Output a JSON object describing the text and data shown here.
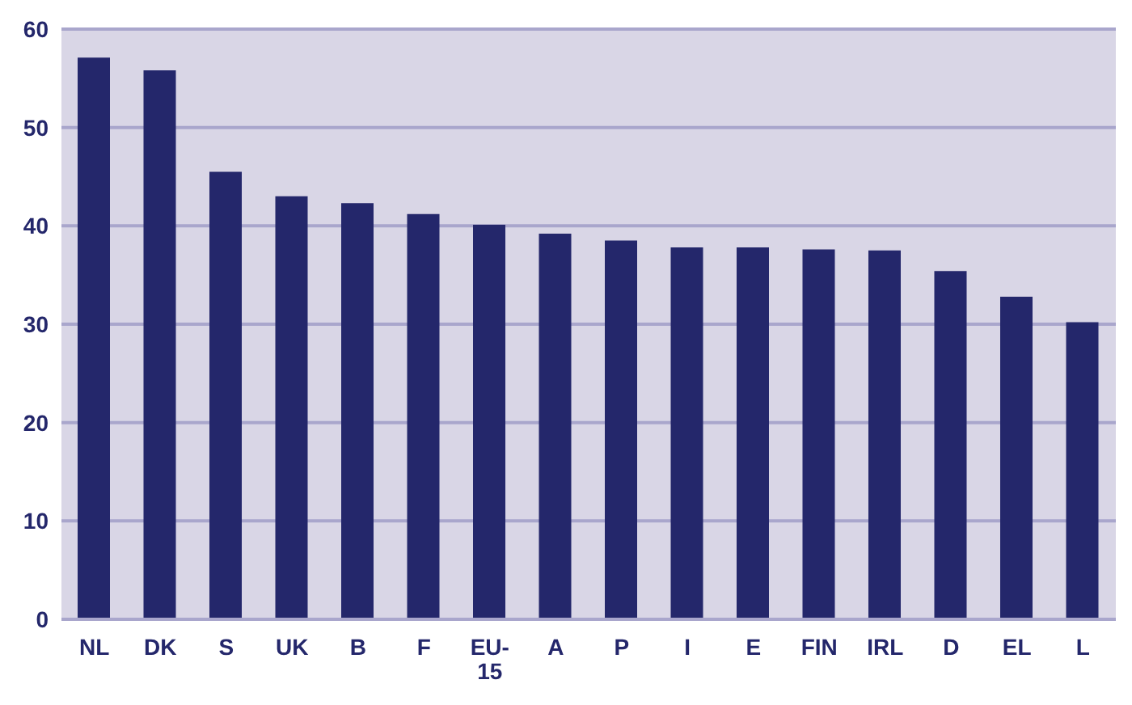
{
  "chart_data": {
    "type": "bar",
    "categories": [
      "NL",
      "DK",
      "S",
      "UK",
      "B",
      "F",
      "EU-15",
      "A",
      "P",
      "I",
      "E",
      "FIN",
      "IRL",
      "D",
      "EL",
      "L"
    ],
    "values": [
      57.1,
      55.8,
      45.5,
      43,
      42.3,
      41.2,
      40.1,
      39.2,
      38.5,
      37.8,
      37.8,
      37.6,
      37.5,
      35.4,
      32.8,
      30.2
    ],
    "color": "#24276b",
    "ylim": [
      0,
      60
    ],
    "yticks": [
      0,
      10,
      20,
      30,
      40,
      50,
      60
    ],
    "grid": "y"
  }
}
